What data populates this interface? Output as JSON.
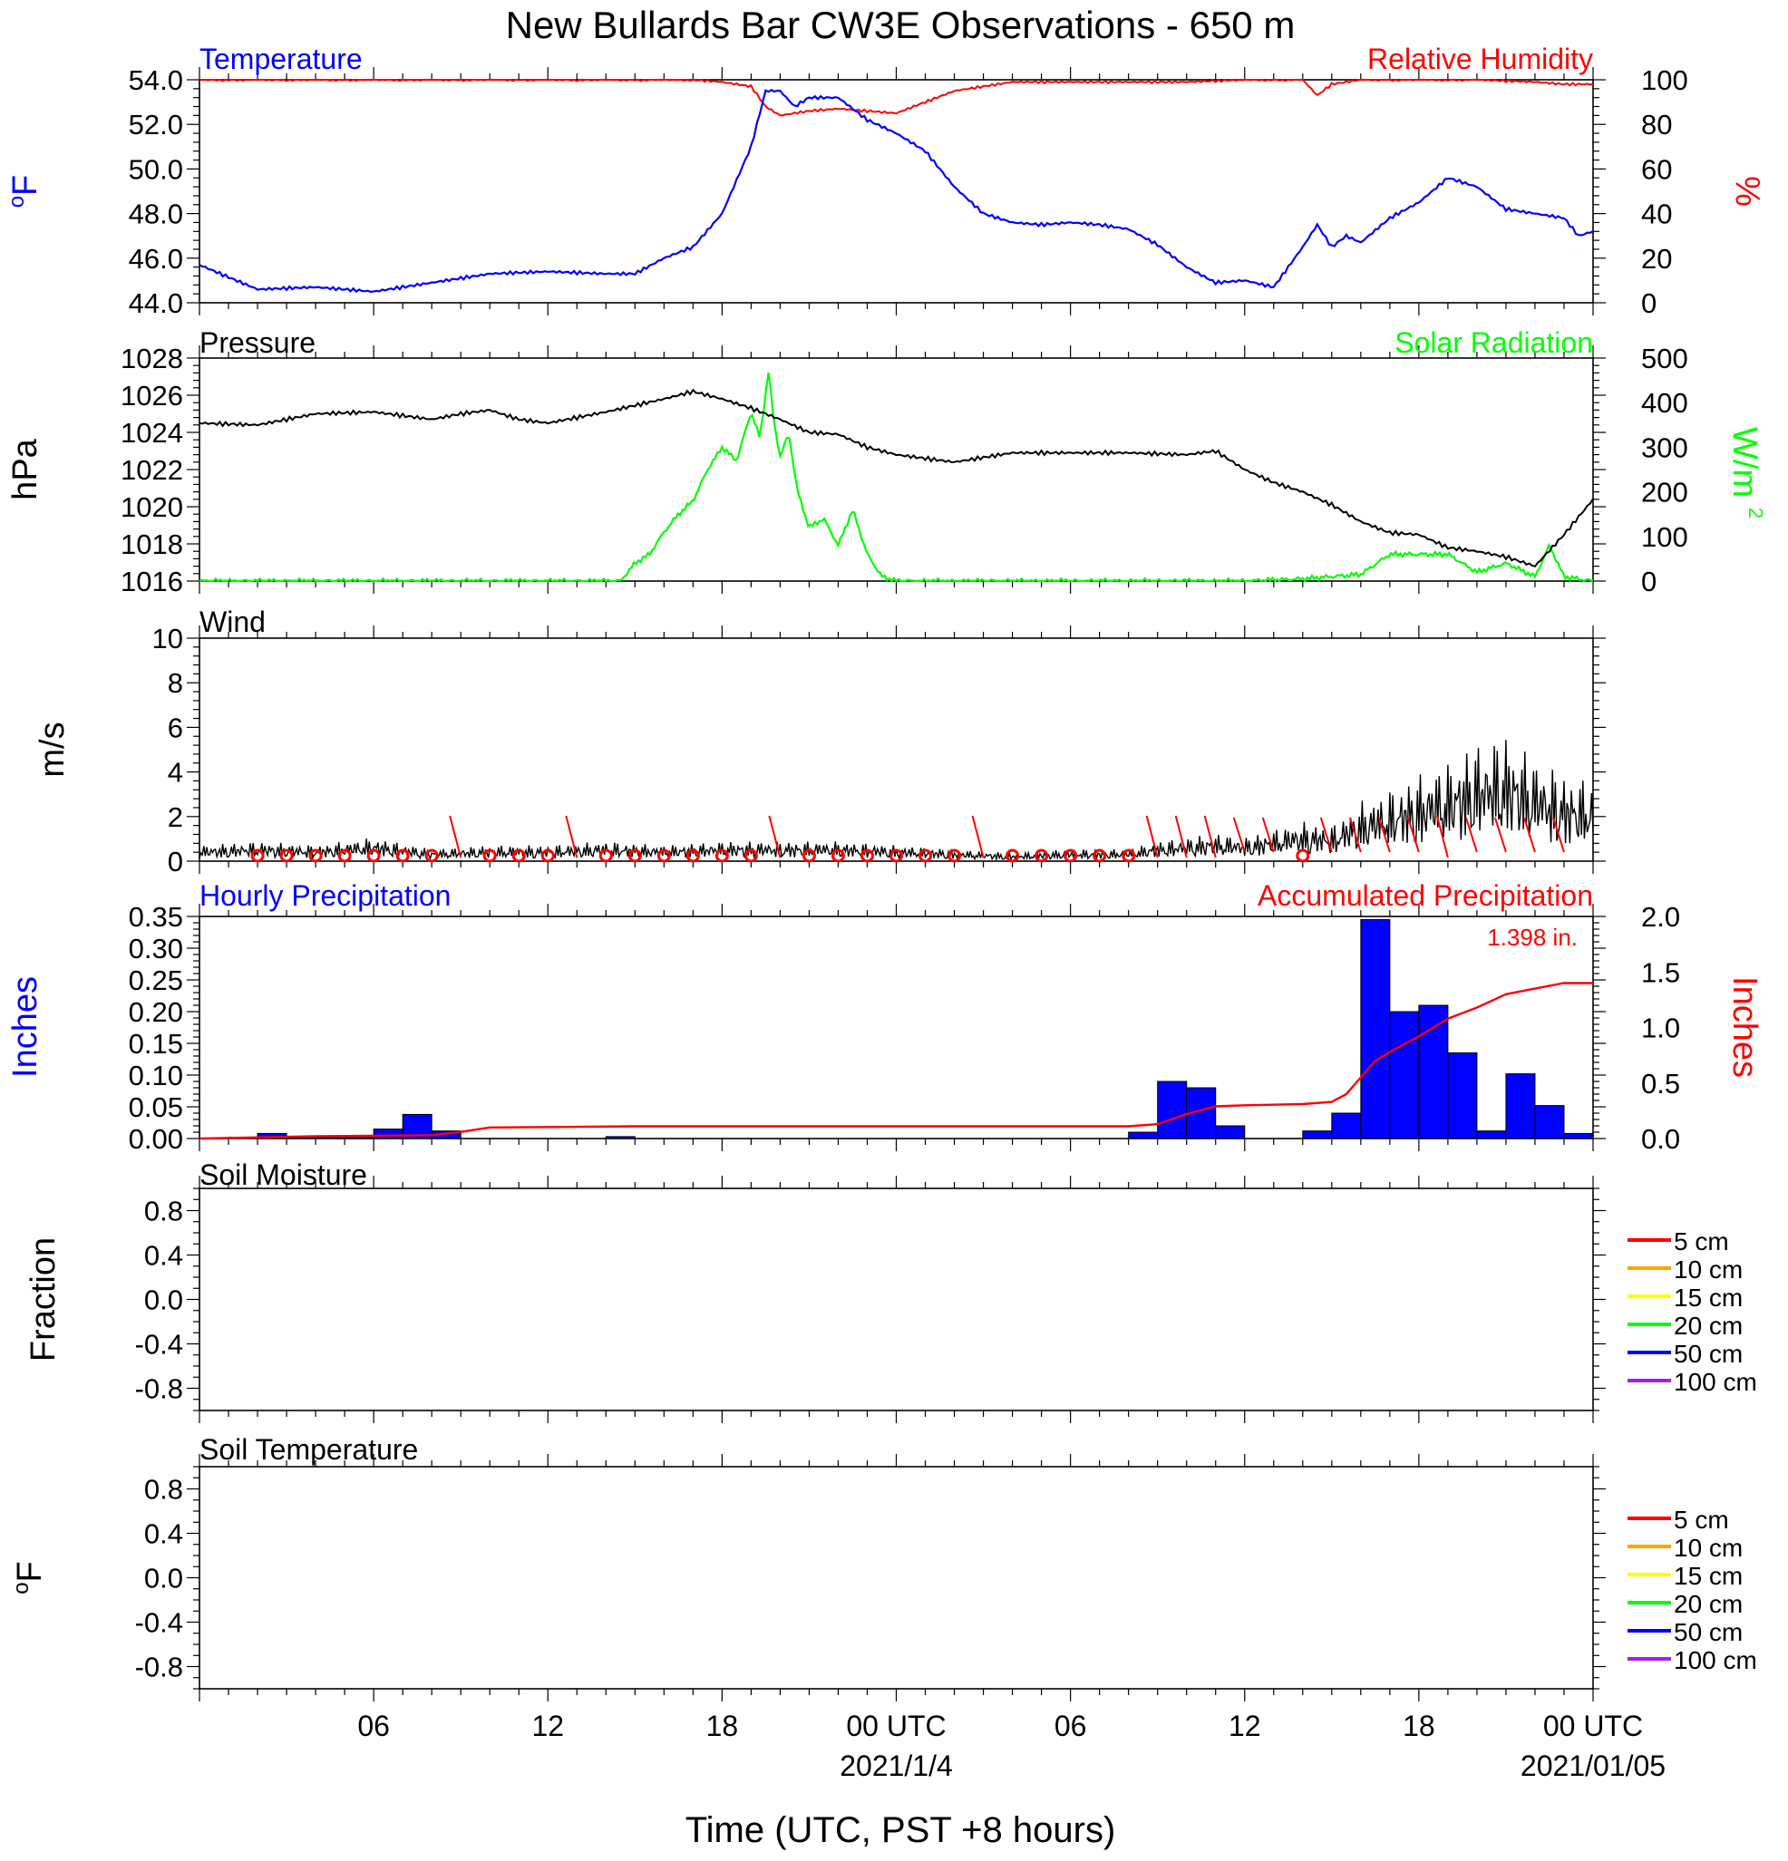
{
  "title": "New Bullards Bar CW3E Observations - 650 m",
  "xaxis": {
    "label": "Time (UTC, PST +8 hours)",
    "start_utc": "2021-01-03T00:00",
    "end_utc": "2021-01-05T00:00",
    "tick_hours": [
      6,
      12,
      18,
      24,
      30,
      36,
      42,
      48
    ],
    "tick_labels": [
      "06",
      "12",
      "18",
      "00 UTC",
      "06",
      "12",
      "18",
      "00 UTC"
    ],
    "date_labels": [
      {
        "hour": 24,
        "text": "2021/1/4"
      },
      {
        "hour": 48,
        "text": "2021/01/05"
      }
    ]
  },
  "colors": {
    "temperature": "#0000ff",
    "humidity": "#ff0000",
    "pressure": "#000000",
    "solar": "#00ff00",
    "wind": "#000000",
    "barb": "#ff0000",
    "hourly_precip": "#0000ff",
    "accum_precip": "#ff0000"
  },
  "panels": {
    "temp_rh": {
      "left_title": "Temperature",
      "right_title": "Relative Humidity",
      "left_unit": "oF",
      "right_unit": "%",
      "left_ticks": [
        "54.0",
        "52.0",
        "50.0",
        "48.0",
        "46.0",
        "44.0"
      ],
      "right_ticks": [
        "100",
        "80",
        "60",
        "40",
        "20",
        "0"
      ]
    },
    "pressure_solar": {
      "left_title": "Pressure",
      "right_title": "Solar Radiation",
      "left_unit": "hPa",
      "right_unit": "W/m2",
      "left_ticks": [
        "1028",
        "1026",
        "1024",
        "1022",
        "1020",
        "1018",
        "1016"
      ],
      "right_ticks": [
        "500",
        "400",
        "300",
        "200",
        "100",
        "0"
      ]
    },
    "wind": {
      "left_title": "Wind",
      "left_unit": "m/s",
      "left_ticks": [
        "10",
        "8",
        "6",
        "4",
        "2",
        "0"
      ]
    },
    "precip": {
      "left_title": "Hourly Precipitation",
      "right_title": "Accumulated Precipitation",
      "left_unit": "Inches",
      "right_unit": "Inches",
      "total_label": "1.398 in.",
      "left_ticks": [
        "0.35",
        "0.30",
        "0.25",
        "0.20",
        "0.15",
        "0.10",
        "0.05",
        "0.00"
      ],
      "right_ticks": [
        "2.0",
        "1.5",
        "1.0",
        "0.5",
        "0.0"
      ]
    },
    "soil_moisture": {
      "left_title": "Soil Moisture",
      "left_unit": "Fraction",
      "left_ticks": [
        "0.8",
        "0.4",
        "0.0",
        "-0.4",
        "-0.8"
      ],
      "legend": [
        "5 cm",
        "10 cm",
        "15 cm",
        "20 cm",
        "50 cm",
        "100 cm"
      ],
      "legend_colors": [
        "#ff0000",
        "#ffa500",
        "#ffff00",
        "#00ff00",
        "#0000ff",
        "#a020f0"
      ]
    },
    "soil_temp": {
      "left_title": "Soil Temperature",
      "left_unit": "oF",
      "left_ticks": [
        "0.8",
        "0.4",
        "0.0",
        "-0.4",
        "-0.8"
      ],
      "legend": [
        "5 cm",
        "10 cm",
        "15 cm",
        "20 cm",
        "50 cm",
        "100 cm"
      ],
      "legend_colors": [
        "#ff0000",
        "#ffa500",
        "#ffff00",
        "#00ff00",
        "#0000ff",
        "#a020f0"
      ]
    }
  },
  "chart_data": [
    {
      "type": "line",
      "title": "Temperature",
      "xlabel": "Time (UTC, PST +8 hours)",
      "ylabel": "oF",
      "ylim": [
        44,
        54
      ],
      "x_hours": [
        0,
        2,
        4,
        6,
        8,
        10,
        12,
        14,
        15,
        16,
        17,
        18,
        19,
        19.5,
        20,
        20.5,
        21,
        22,
        23,
        24,
        25,
        26,
        27,
        28,
        29,
        30,
        31,
        32,
        33,
        34,
        35,
        36,
        37,
        38,
        38.5,
        39,
        39.5,
        40,
        41,
        42,
        43,
        44,
        45,
        46,
        47,
        47.5,
        48
      ],
      "series": [
        {
          "name": "Temperature",
          "values": [
            45.7,
            44.6,
            44.7,
            44.5,
            44.9,
            45.3,
            45.4,
            45.3,
            45.3,
            46.0,
            46.5,
            48.0,
            51.0,
            53.5,
            53.5,
            52.8,
            53.2,
            53.2,
            52.2,
            51.6,
            50.8,
            49.2,
            48.0,
            47.6,
            47.5,
            47.6,
            47.5,
            47.3,
            46.6,
            45.6,
            44.9,
            45.0,
            44.7,
            46.5,
            47.5,
            46.5,
            47.0,
            46.7,
            47.8,
            48.5,
            49.6,
            49.2,
            48.2,
            48.0,
            47.8,
            47.0,
            47.2
          ]
        }
      ]
    },
    {
      "type": "line",
      "title": "Relative Humidity",
      "ylabel": "%",
      "ylim": [
        0,
        100
      ],
      "x_hours": [
        0,
        17,
        18,
        19,
        19.5,
        20,
        21,
        22,
        23,
        24,
        25,
        26,
        27,
        28,
        30,
        32,
        34,
        36,
        38,
        38.5,
        39,
        40,
        42,
        44,
        46,
        47,
        48
      ],
      "series": [
        {
          "name": "Relative Humidity",
          "values": [
            100,
            100,
            99,
            97,
            88,
            84,
            86,
            87,
            86,
            85,
            90,
            95,
            97,
            99,
            99,
            99,
            99,
            100,
            100,
            93,
            98,
            100,
            100,
            100,
            99,
            98,
            98
          ]
        }
      ]
    },
    {
      "type": "line",
      "title": "Pressure",
      "ylabel": "hPa",
      "ylim": [
        1016,
        1028
      ],
      "x_hours": [
        0,
        2,
        4,
        6,
        8,
        9,
        10,
        11,
        12,
        14,
        16,
        17,
        18,
        19,
        20,
        21,
        22,
        23,
        24,
        25,
        26,
        28,
        30,
        32,
        34,
        35,
        36,
        37,
        38,
        39,
        40,
        41,
        42,
        43,
        44,
        45,
        46,
        47,
        48
      ],
      "series": [
        {
          "name": "Pressure",
          "values": [
            1024.5,
            1024.4,
            1025.0,
            1025.1,
            1024.7,
            1025.0,
            1025.2,
            1024.7,
            1024.5,
            1025.1,
            1025.8,
            1026.2,
            1025.8,
            1025.3,
            1024.7,
            1024.0,
            1023.9,
            1023.2,
            1022.8,
            1022.6,
            1022.4,
            1022.9,
            1022.9,
            1022.9,
            1022.8,
            1023.0,
            1022.0,
            1021.3,
            1020.8,
            1020.1,
            1019.2,
            1018.6,
            1018.5,
            1017.8,
            1017.6,
            1017.3,
            1016.8,
            1018.5,
            1020.4
          ]
        }
      ]
    },
    {
      "type": "area",
      "title": "Solar Radiation",
      "ylabel": "W/m2",
      "ylim": [
        0,
        500
      ],
      "x_hours": [
        0,
        14.5,
        15,
        15.5,
        16,
        16.5,
        17,
        17.5,
        18,
        18.5,
        19,
        19.3,
        19.6,
        19.8,
        20,
        20.3,
        20.6,
        21,
        21.5,
        22,
        22.5,
        23,
        23.5,
        24,
        25,
        36,
        38,
        40,
        41,
        42,
        43,
        44,
        45,
        46,
        46.5,
        47,
        48
      ],
      "series": [
        {
          "name": "Solar Radiation",
          "values": [
            0,
            0,
            40,
            60,
            110,
            150,
            180,
            250,
            300,
            270,
            380,
            320,
            470,
            350,
            280,
            330,
            200,
            120,
            140,
            80,
            160,
            60,
            10,
            0,
            0,
            0,
            5,
            15,
            60,
            60,
            60,
            20,
            40,
            10,
            80,
            10,
            0
          ]
        }
      ]
    },
    {
      "type": "line",
      "title": "Wind",
      "ylabel": "m/s",
      "ylim": [
        0,
        10
      ],
      "x_hours": [
        0,
        2,
        4,
        6,
        8,
        10,
        12,
        14,
        16,
        18,
        20,
        22,
        24,
        26,
        28,
        30,
        32,
        33,
        34,
        35,
        36,
        37,
        38,
        39,
        40,
        41,
        42,
        43,
        44,
        45,
        46,
        47,
        48
      ],
      "series": [
        {
          "name": "Wind speed",
          "values": [
            0.4,
            0.5,
            0.4,
            0.6,
            0.3,
            0.4,
            0.4,
            0.5,
            0.4,
            0.5,
            0.5,
            0.5,
            0.4,
            0.3,
            0.2,
            0.3,
            0.3,
            0.5,
            0.6,
            0.7,
            0.6,
            0.8,
            1.0,
            0.9,
            1.5,
            1.8,
            2.2,
            2.5,
            3.0,
            3.2,
            2.6,
            2.2,
            2.0
          ]
        }
      ],
      "barb_hours": [
        2,
        3,
        4,
        5,
        6,
        7,
        8,
        9,
        10,
        11,
        12,
        13,
        14,
        15,
        16,
        17,
        18,
        19,
        20,
        21,
        22,
        23,
        24,
        25,
        26,
        27,
        28,
        29,
        30,
        31,
        32,
        33,
        34,
        35,
        36,
        37,
        38,
        39,
        40,
        41,
        42,
        43,
        44,
        45,
        46,
        47
      ],
      "barb_calm": [
        true,
        true,
        true,
        true,
        true,
        true,
        true,
        false,
        true,
        true,
        true,
        false,
        true,
        true,
        true,
        true,
        true,
        true,
        false,
        true,
        true,
        true,
        true,
        true,
        true,
        false,
        true,
        true,
        true,
        true,
        true,
        false,
        false,
        false,
        false,
        false,
        true,
        false,
        false,
        false,
        false,
        false,
        false,
        false,
        false,
        false
      ]
    },
    {
      "type": "bar",
      "title": "Hourly Precipitation",
      "ylabel": "Inches",
      "ylim": [
        0,
        0.35
      ],
      "x_hours": [
        0,
        1,
        2,
        3,
        4,
        5,
        6,
        7,
        8,
        9,
        10,
        11,
        12,
        13,
        14,
        15,
        16,
        17,
        18,
        19,
        20,
        21,
        22,
        23,
        24,
        25,
        26,
        27,
        28,
        29,
        30,
        31,
        32,
        33,
        34,
        35,
        36,
        37,
        38,
        39,
        40,
        41,
        42,
        43,
        44,
        45,
        46,
        47
      ],
      "values": [
        0.0,
        0.002,
        0.008,
        0.002,
        0.002,
        0.002,
        0.015,
        0.038,
        0.012,
        0.0,
        0.0,
        0.0,
        0.0,
        0.0,
        0.003,
        0.0,
        0.0,
        0.0,
        0.0,
        0.0,
        0.0,
        0.0,
        0.0,
        0.0,
        0.0,
        0.0,
        0.0,
        0.0,
        0.0,
        0.0,
        0.0,
        0.0,
        0.01,
        0.09,
        0.08,
        0.02,
        0.0,
        0.0,
        0.012,
        0.04,
        0.345,
        0.2,
        0.21,
        0.135,
        0.012,
        0.102,
        0.052,
        0.008
      ]
    },
    {
      "type": "line",
      "title": "Accumulated Precipitation",
      "ylabel": "Inches",
      "ylim": [
        0,
        2.0
      ],
      "x_hours": [
        0,
        4,
        8,
        9,
        10,
        15,
        32,
        33,
        34,
        35,
        36,
        38,
        39,
        39.5,
        40,
        40.5,
        41,
        42,
        43,
        44,
        45,
        46,
        47,
        48
      ],
      "series": [
        {
          "name": "Accumulated Precipitation",
          "values": [
            0.0,
            0.02,
            0.03,
            0.06,
            0.1,
            0.11,
            0.11,
            0.13,
            0.22,
            0.29,
            0.3,
            0.31,
            0.33,
            0.4,
            0.55,
            0.7,
            0.78,
            0.92,
            1.08,
            1.18,
            1.3,
            1.35,
            1.4,
            1.4
          ]
        }
      ],
      "total": 1.398
    }
  ]
}
